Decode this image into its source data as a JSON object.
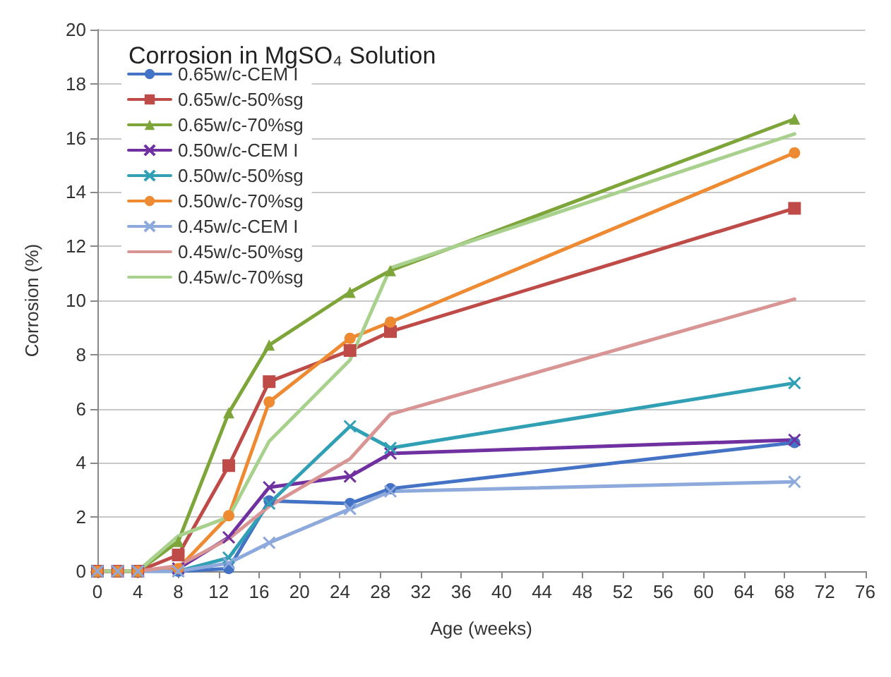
{
  "chart_data": {
    "type": "line",
    "title": "Corrosion in MgSO₄ Solution",
    "xlabel": "Age (weeks)",
    "ylabel": "Corrosion (%)",
    "x": [
      0,
      2,
      4,
      8,
      13,
      17,
      25,
      29,
      69
    ],
    "xlim": [
      0,
      76
    ],
    "xticks": [
      0,
      4,
      8,
      12,
      16,
      20,
      24,
      28,
      32,
      36,
      40,
      44,
      48,
      52,
      56,
      60,
      64,
      68,
      72,
      76
    ],
    "ylim": [
      0,
      20
    ],
    "yticks": [
      0,
      2,
      4,
      6,
      8,
      10,
      12,
      14,
      16,
      18,
      20
    ],
    "grid": "y",
    "legend": "top left",
    "line_style": "solid",
    "series": [
      {
        "name": "0.65w/c-CEM I",
        "color": "#4472c4",
        "marker": "circle",
        "values": [
          0,
          0,
          0,
          0,
          0.1,
          2.6,
          2.5,
          3.05,
          4.75
        ]
      },
      {
        "name": "0.65w/c-50%sg",
        "color": "#be4b48",
        "marker": "square",
        "values": [
          0,
          0,
          0,
          0.6,
          3.9,
          7.0,
          8.15,
          8.85,
          13.4
        ]
      },
      {
        "name": "0.65w/c-70%sg",
        "color": "#7ea53a",
        "marker": "triangle",
        "values": [
          0,
          0,
          0,
          1.1,
          5.85,
          8.35,
          10.3,
          11.1,
          16.7
        ]
      },
      {
        "name": "0.50w/c-CEM I",
        "color": "#7030a0",
        "marker": "cross",
        "values": [
          0,
          0,
          0,
          0.1,
          1.25,
          3.1,
          3.5,
          4.35,
          4.85
        ]
      },
      {
        "name": "0.50w/c-50%sg",
        "color": "#31a0b5",
        "marker": "cross",
        "values": [
          0,
          0,
          0,
          0,
          0.5,
          2.5,
          5.35,
          4.55,
          6.95
        ]
      },
      {
        "name": "0.50w/c-70%sg",
        "color": "#ed8a32",
        "marker": "circle",
        "values": [
          0,
          0,
          0,
          0.1,
          2.05,
          6.25,
          8.6,
          9.2,
          15.45
        ]
      },
      {
        "name": "0.45w/c-CEM I",
        "color": "#8ea9db",
        "marker": "cross",
        "values": [
          0,
          0,
          0,
          0,
          0.3,
          1.05,
          2.3,
          2.95,
          3.3
        ]
      },
      {
        "name": "0.45w/c-50%sg",
        "color": "#d99594",
        "marker": "none",
        "values": [
          0,
          0,
          0,
          0.2,
          1.2,
          2.4,
          4.15,
          5.8,
          10.05
        ]
      },
      {
        "name": "0.45w/c-70%sg",
        "color": "#a9d18e",
        "marker": "none",
        "values": [
          0,
          0,
          0,
          1.3,
          2.0,
          4.8,
          7.8,
          11.2,
          16.15
        ]
      }
    ]
  }
}
